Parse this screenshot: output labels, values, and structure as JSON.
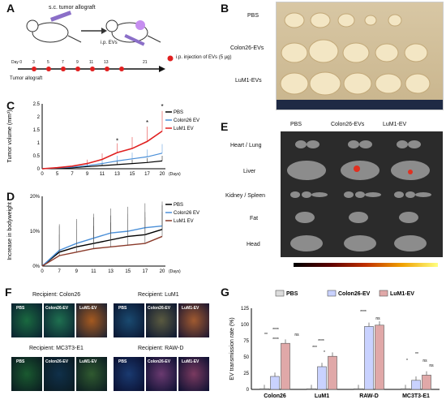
{
  "panels": {
    "A": {
      "label": "A",
      "allograft_label": "s.c. tumor allograft",
      "injection_label": "i.p. EVs",
      "days": [
        "Day 0",
        "3",
        "5",
        "7",
        "9",
        "11",
        "13",
        "21"
      ],
      "timeline_label": "Tumor allograft",
      "legend": "i.p. injection of EVs (5 µg)",
      "accent_color": "#e02020"
    },
    "B": {
      "label": "B",
      "rows": [
        "PBS",
        "Colon26-EVs",
        "LuM1-EVs"
      ]
    },
    "C": {
      "label": "C",
      "chart_data": {
        "type": "line",
        "ylabel": "Tumor volume (mm³)",
        "xunit": "(Days)",
        "x": [
          0,
          5,
          7,
          9,
          11,
          13,
          15,
          17,
          20
        ],
        "ylim": [
          0,
          2.5
        ],
        "yticks": [
          0,
          0.5,
          1,
          1.5,
          2,
          2.5
        ],
        "series": [
          {
            "name": "PBS",
            "color": "#000000",
            "values": [
              0,
              0.02,
              0.04,
              0.08,
              0.12,
              0.16,
              0.2,
              0.24,
              0.3
            ]
          },
          {
            "name": "Colon26 EV",
            "color": "#4a8fd8",
            "values": [
              0,
              0.03,
              0.06,
              0.12,
              0.2,
              0.3,
              0.38,
              0.46,
              0.6
            ]
          },
          {
            "name": "LuM1 EV",
            "color": "#e02020",
            "values": [
              0,
              0.04,
              0.1,
              0.2,
              0.36,
              0.62,
              0.78,
              1.05,
              1.45
            ]
          }
        ],
        "asterisk": "*"
      }
    },
    "D": {
      "label": "D",
      "chart_data": {
        "type": "line",
        "ylabel": "Increase in bodyweight",
        "xunit": "(Days)",
        "x": [
          0,
          7,
          9,
          11,
          13,
          15,
          17,
          20
        ],
        "ylim": [
          0,
          20
        ],
        "yticks": [
          "0%",
          "10%",
          "20%"
        ],
        "series": [
          {
            "name": "PBS",
            "color": "#000000",
            "values": [
              0,
              4,
              5.5,
              6.5,
              7.5,
              8.5,
              9,
              10.5
            ]
          },
          {
            "name": "Colon26 EV",
            "color": "#4a8fd8",
            "values": [
              0,
              4.5,
              6.5,
              8,
              9.5,
              10,
              11,
              11.5
            ]
          },
          {
            "name": "LuM1 EV",
            "color": "#8a3a2a",
            "values": [
              0,
              3,
              4,
              5,
              5.5,
              6,
              6.5,
              8.5
            ]
          }
        ]
      }
    },
    "E": {
      "label": "E",
      "columns": [
        "PBS",
        "Colon26-EVs",
        "LuM1-EV"
      ],
      "rows": [
        "Heart / Lung",
        "Liver",
        "Kidney / Spleen",
        "Fat",
        "Head"
      ]
    },
    "F": {
      "label": "F",
      "groups": [
        {
          "title": "Recipient: Colon26",
          "cols": [
            "PBS",
            "Colon26-EV",
            "LuM1-EV"
          ]
        },
        {
          "title": "Recipient: LuM1",
          "cols": [
            "PBS",
            "Colon26-EV",
            "LuM1-EV"
          ]
        },
        {
          "title": "Recipient: MC3T3-E1",
          "cols": [
            "PBS",
            "Colon26-EV",
            "LuM1-EV"
          ]
        },
        {
          "title": "Recipient: RAW-D",
          "cols": [
            "PBS",
            "Colon26-EV",
            "LuM1-EV"
          ]
        }
      ]
    },
    "G": {
      "label": "G",
      "chart_data": {
        "type": "bar",
        "ylabel": "EV transmission rate (%)",
        "categories": [
          "Colon26",
          "LuM1",
          "RAW-D",
          "MC3T3-E1"
        ],
        "ylim": [
          0,
          125
        ],
        "yticks": [
          0,
          25,
          50,
          75,
          100,
          125
        ],
        "series": [
          {
            "name": "PBS",
            "color": "#dcdcdc",
            "values": [
              1,
              1,
              1,
              1
            ]
          },
          {
            "name": "Colon26-EV",
            "color": "#c9d2ff",
            "values": [
              20,
              35,
              97,
              14
            ]
          },
          {
            "name": "LuM1-EV",
            "color": "#e0a8a8",
            "values": [
              71,
              51,
              99,
              22
            ]
          }
        ],
        "sig": [
          "****",
          "**",
          "ns",
          "****",
          "***",
          "*",
          "****",
          "****",
          "ns",
          "**",
          "*",
          "ns",
          "ns"
        ]
      }
    }
  }
}
